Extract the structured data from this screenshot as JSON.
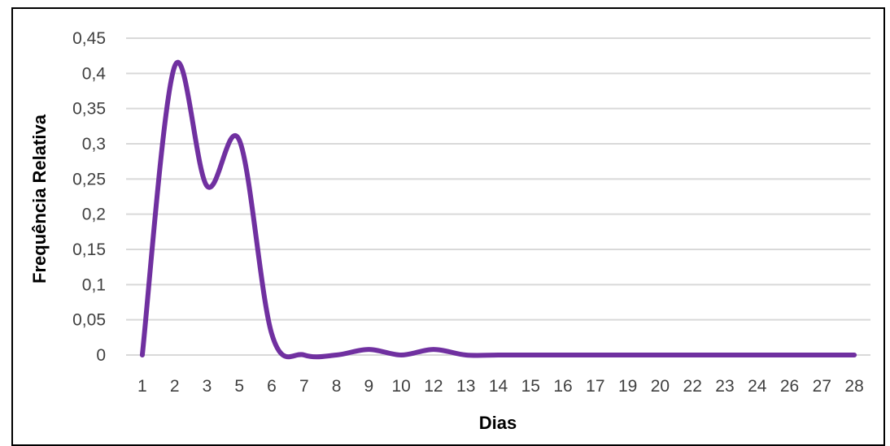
{
  "chart_data": {
    "type": "line",
    "smooth": true,
    "categories": [
      "1",
      "2",
      "3",
      "5",
      "6",
      "7",
      "8",
      "9",
      "10",
      "12",
      "13",
      "14",
      "15",
      "16",
      "17",
      "19",
      "20",
      "22",
      "23",
      "24",
      "26",
      "27",
      "28"
    ],
    "values": [
      0,
      0.41,
      0.24,
      0.305,
      0.03,
      0,
      0,
      0.008,
      0,
      0.008,
      0,
      0,
      0,
      0,
      0,
      0,
      0,
      0,
      0,
      0,
      0,
      0,
      0
    ],
    "xlabel": "Dias",
    "ylabel": "Frequência Relativa",
    "ylim": [
      0,
      0.45
    ],
    "yticks": [
      "0",
      "0,05",
      "0,1",
      "0,15",
      "0,2",
      "0,25",
      "0,3",
      "0,35",
      "0,4",
      "0,45"
    ],
    "grid": true,
    "colors": {
      "series": "#7030A0",
      "grid": "#D9D9D9",
      "axis": "#D9D9D9"
    }
  }
}
